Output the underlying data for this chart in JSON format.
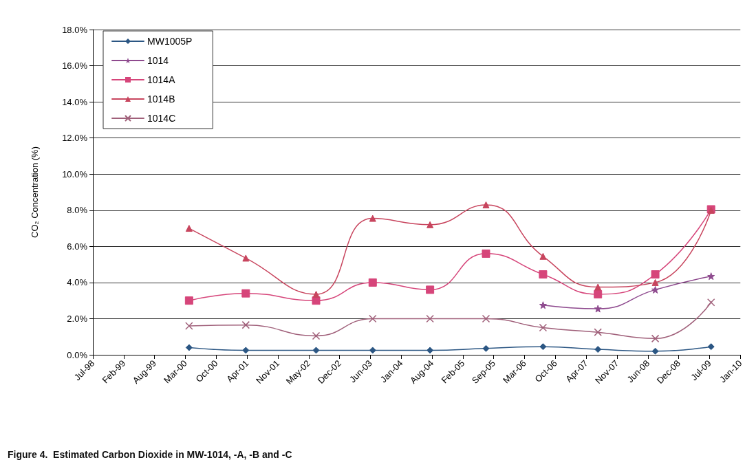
{
  "chart_data": {
    "type": "line",
    "title": "Figure 4.  Estimated Carbon Dioxide in MW-1014, -A, -B and -C",
    "ylabel": "CO₂ Concentration (%)",
    "x": [
      "2000-04-09",
      "2001-04-12",
      "2002-07-12",
      "2003-07-14",
      "2004-07-20",
      "2005-07-18",
      "2006-07-23",
      "2007-07-14",
      "2008-07-20",
      "2009-07-17"
    ],
    "series": [
      {
        "name": "MW1005P",
        "color": "#2b5683",
        "marker": "diamond",
        "values": [
          0.4,
          0.25,
          0.25,
          0.25,
          0.25,
          0.35,
          0.45,
          0.3,
          0.2,
          0.45
        ]
      },
      {
        "name": "1014",
        "color": "#8e4a8e",
        "marker": "star",
        "values": [
          null,
          null,
          null,
          null,
          null,
          null,
          2.75,
          2.55,
          3.6,
          4.35
        ]
      },
      {
        "name": "1014A",
        "color": "#d6457a",
        "marker": "square",
        "values": [
          3.0,
          3.4,
          3.0,
          4.0,
          3.6,
          5.6,
          4.45,
          3.35,
          4.45,
          8.05
        ]
      },
      {
        "name": "1014B",
        "color": "#c8455e",
        "marker": "triangle",
        "values": [
          7.0,
          5.35,
          3.35,
          7.55,
          7.2,
          8.3,
          5.45,
          3.75,
          4.0,
          8.0
        ]
      },
      {
        "name": "1014C",
        "color": "#a0607a",
        "marker": "cross",
        "values": [
          1.6,
          1.65,
          1.05,
          2.0,
          2.0,
          2.0,
          1.5,
          1.25,
          0.9,
          2.9
        ]
      }
    ],
    "xlim": [
      "1998-07-25",
      "2010-01-23"
    ],
    "xticks": [
      {
        "value": "1998-07-25",
        "label": "Jul-98"
      },
      {
        "value": "1999-02-10",
        "label": "Feb-99"
      },
      {
        "value": "1999-08-29",
        "label": "Aug-99"
      },
      {
        "value": "2000-03-16",
        "label": "Mar-00"
      },
      {
        "value": "2000-10-02",
        "label": "Oct-00"
      },
      {
        "value": "2001-04-20",
        "label": "Apr-01"
      },
      {
        "value": "2001-11-06",
        "label": "Nov-01"
      },
      {
        "value": "2002-05-25",
        "label": "May-02"
      },
      {
        "value": "2002-12-11",
        "label": "Dec-02"
      },
      {
        "value": "2003-06-29",
        "label": "Jun-03"
      },
      {
        "value": "2004-01-15",
        "label": "Jan-04"
      },
      {
        "value": "2004-08-02",
        "label": "Aug-04"
      },
      {
        "value": "2005-02-18",
        "label": "Feb-05"
      },
      {
        "value": "2005-09-06",
        "label": "Sep-05"
      },
      {
        "value": "2006-03-25",
        "label": "Mar-06"
      },
      {
        "value": "2006-10-11",
        "label": "Oct-06"
      },
      {
        "value": "2007-04-29",
        "label": "Apr-07"
      },
      {
        "value": "2007-11-15",
        "label": "Nov-07"
      },
      {
        "value": "2008-06-02",
        "label": "Jun-08"
      },
      {
        "value": "2008-12-19",
        "label": "Dec-08"
      },
      {
        "value": "2009-07-07",
        "label": "Jul-09"
      },
      {
        "value": "2010-01-23",
        "label": "Jan-10"
      }
    ],
    "ylim": [
      0,
      18
    ],
    "yticks": [
      {
        "value": 0,
        "label": "0.0%"
      },
      {
        "value": 2,
        "label": "2.0%"
      },
      {
        "value": 4,
        "label": "4.0%"
      },
      {
        "value": 6,
        "label": "6.0%"
      },
      {
        "value": 8,
        "label": "8.0%"
      },
      {
        "value": 10,
        "label": "10.0%"
      },
      {
        "value": 12,
        "label": "12.0%"
      },
      {
        "value": 14,
        "label": "14.0%"
      },
      {
        "value": 16,
        "label": "16.0%"
      },
      {
        "value": 18,
        "label": "18.0%"
      }
    ],
    "grid": "y",
    "legend": "top left"
  }
}
